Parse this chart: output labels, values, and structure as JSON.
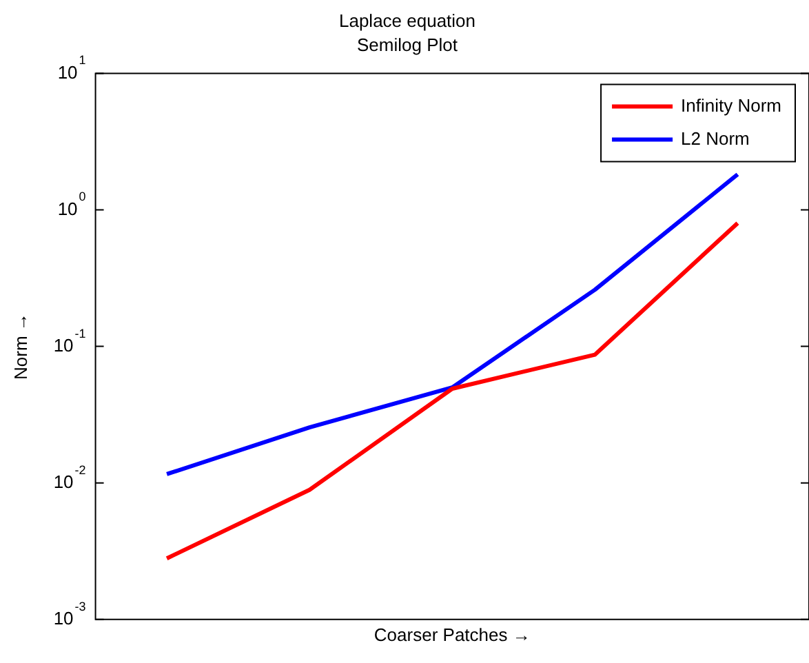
{
  "chart_data": {
    "type": "line",
    "title": "Laplace equation",
    "subtitle": "Semilog Plot",
    "xlabel": "Coarser Patches →",
    "ylabel": "Norm →",
    "categories": [
      null,
      null,
      null,
      null,
      null
    ],
    "series": [
      {
        "name": "Infinity Norm",
        "color": "#ff0000",
        "values": [
          0.0028,
          0.0089,
          0.049,
          0.087,
          0.8
        ]
      },
      {
        "name": "L2 Norm",
        "color": "#0000ff",
        "values": [
          0.0116,
          0.0255,
          0.05,
          0.26,
          1.82
        ]
      }
    ],
    "log": "y",
    "ylim": [
      0.001,
      10
    ],
    "yticks": [
      {
        "value": 0.001,
        "label": "10$^{-3}$"
      },
      {
        "value": 0.01,
        "label": "10$^{-2}$"
      },
      {
        "value": 0.1,
        "label": "10$^{-1}$"
      },
      {
        "value": 1,
        "label": "10$^{0}$"
      },
      {
        "value": 10,
        "label": "10$^{1}$"
      }
    ],
    "tick_labels": "y",
    "grid": false,
    "legend": "top right",
    "marker": "none",
    "line_style": "solid"
  }
}
